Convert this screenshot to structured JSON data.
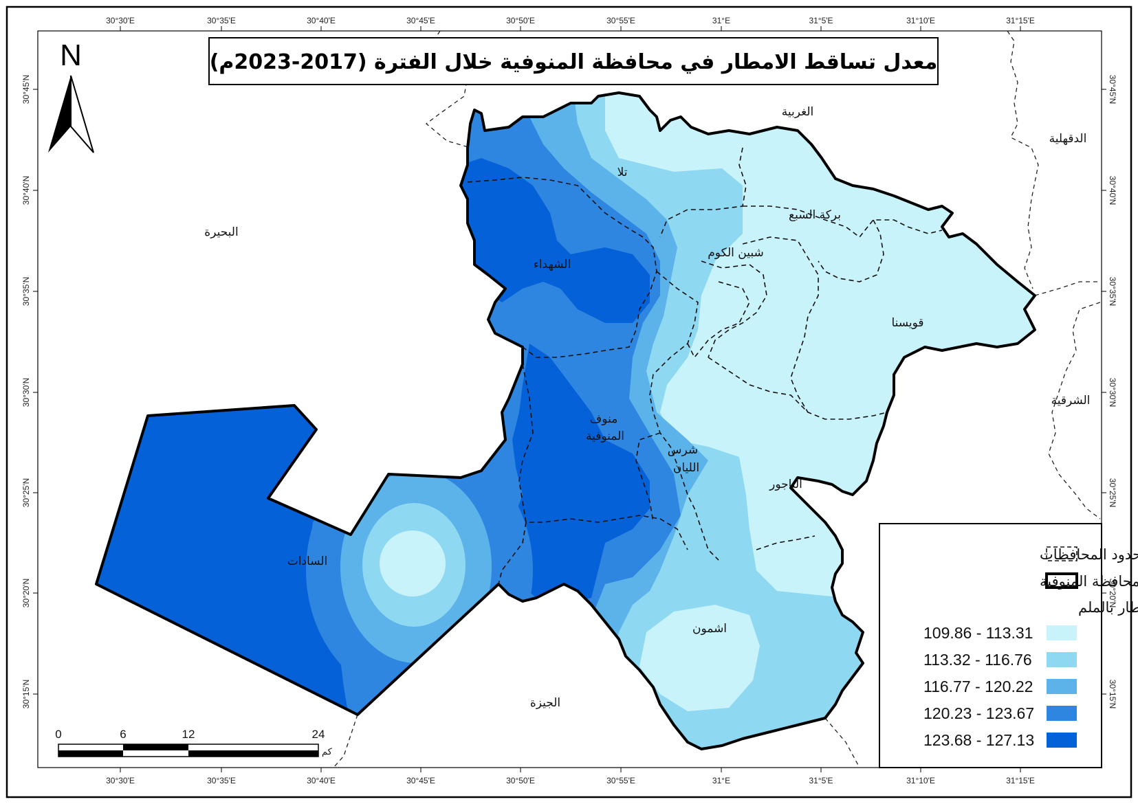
{
  "title": "معدل تساقط الامطار في محافظة المنوفية خلال الفترة (2017-2023م)",
  "north_label": "N",
  "longitude_ticks": [
    "30°30'E",
    "30°35'E",
    "30°40'E",
    "30°45'E",
    "30°50'E",
    "30°55'E",
    "31°E",
    "31°5'E",
    "31°10'E",
    "31°15'E"
  ],
  "latitude_ticks": [
    "30°45'N",
    "30°40'N",
    "30°35'N",
    "30°30'N",
    "30°25'N",
    "30°20'N",
    "30°15'N"
  ],
  "neighbors": {
    "beheira": "البحيرة",
    "gharbia": "الغربية",
    "dakahlia": "الدقهلية",
    "sharqia": "الشرقية",
    "giza": "الجيزة"
  },
  "districts": {
    "tala": "تلا",
    "birket_elsabaa": "بركة السبع",
    "shebin": "شبين الكوم",
    "shohadaa": "الشهداء",
    "quesna": "قويسنا",
    "menouf_line1": "منوف",
    "menouf_line2": "المنوفية",
    "shirbin_line1": "شرس",
    "shirbin_line2": "الليان",
    "bagour": "الباجور",
    "sadat": "السادات",
    "ashmoun": "اشمون"
  },
  "legend": {
    "governorate_borders": "حدود المحافظات",
    "menoufia_gov": "محافظة المنوفية",
    "rain_title": "الامطار بالملم",
    "classes": [
      {
        "label": "109.86 - 113.31",
        "color": "#c9f3fb"
      },
      {
        "label": "113.32 - 116.76",
        "color": "#8fd8f2"
      },
      {
        "label": "116.77 - 120.22",
        "color": "#5cb3ea"
      },
      {
        "label": "120.23 - 123.67",
        "color": "#2f86e0"
      },
      {
        "label": "123.68 - 127.13",
        "color": "#0561d8"
      }
    ]
  },
  "scale": {
    "ticks": [
      "0",
      "6",
      "12",
      "24"
    ],
    "unit": "كم"
  }
}
